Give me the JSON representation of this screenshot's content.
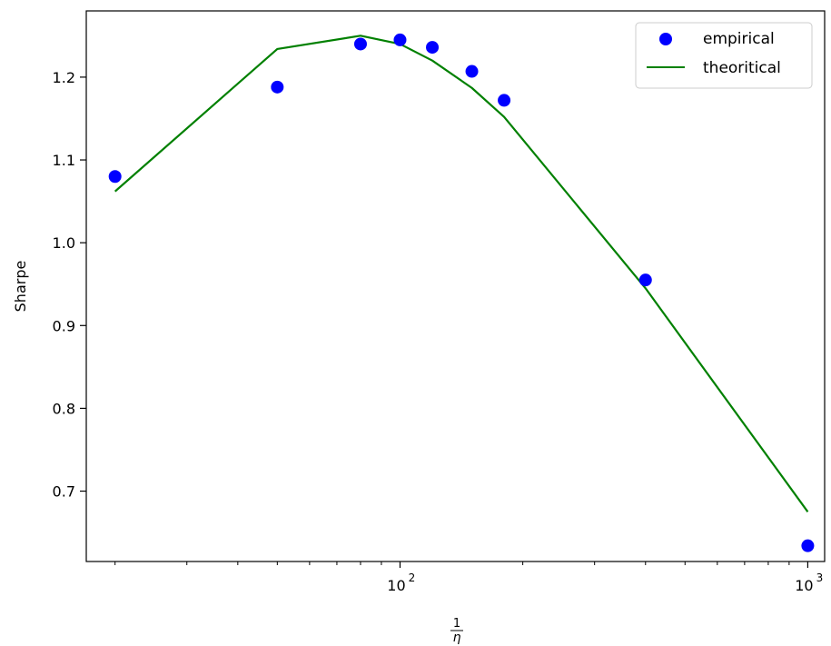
{
  "chart_data": {
    "type": "scatter",
    "title": "",
    "xlabel_numerator": "1",
    "xlabel_denominator": "η",
    "ylabel": "Sharpe",
    "xscale": "log",
    "xlim": [
      17,
      1100
    ],
    "ylim": [
      0.615,
      1.28
    ],
    "grid": false,
    "legend_position": "top-right",
    "x_ticks": [
      {
        "value": 100,
        "base": "10",
        "exp": "2"
      },
      {
        "value": 1000,
        "base": "10",
        "exp": "3"
      }
    ],
    "y_ticks": [
      {
        "value": 0.7,
        "label": "0.7"
      },
      {
        "value": 0.8,
        "label": "0.8"
      },
      {
        "value": 0.9,
        "label": "0.9"
      },
      {
        "value": 1.0,
        "label": "1.0"
      },
      {
        "value": 1.1,
        "label": "1.1"
      },
      {
        "value": 1.2,
        "label": "1.2"
      }
    ],
    "x_minor_ticks": [
      20,
      30,
      40,
      50,
      60,
      70,
      80,
      90,
      200,
      300,
      400,
      500,
      600,
      700,
      800,
      900
    ],
    "series": [
      {
        "name": "empirical",
        "kind": "scatter",
        "color": "#0000ff",
        "points": [
          {
            "x": 20,
            "y": 1.08
          },
          {
            "x": 50,
            "y": 1.188
          },
          {
            "x": 80,
            "y": 1.24
          },
          {
            "x": 100,
            "y": 1.245
          },
          {
            "x": 120,
            "y": 1.236
          },
          {
            "x": 150,
            "y": 1.207
          },
          {
            "x": 180,
            "y": 1.172
          },
          {
            "x": 400,
            "y": 0.955
          },
          {
            "x": 1000,
            "y": 0.634
          }
        ]
      },
      {
        "name": "theoritical",
        "kind": "line",
        "color": "#008000",
        "points": [
          {
            "x": 20,
            "y": 1.062
          },
          {
            "x": 50,
            "y": 1.234
          },
          {
            "x": 80,
            "y": 1.25
          },
          {
            "x": 100,
            "y": 1.24
          },
          {
            "x": 120,
            "y": 1.22
          },
          {
            "x": 150,
            "y": 1.187
          },
          {
            "x": 180,
            "y": 1.152
          },
          {
            "x": 400,
            "y": 0.945
          },
          {
            "x": 1000,
            "y": 0.675
          }
        ]
      }
    ]
  }
}
